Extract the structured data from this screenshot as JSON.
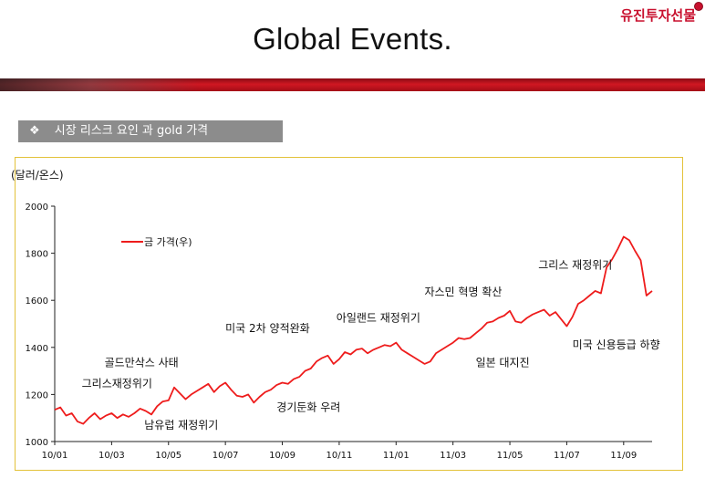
{
  "brand": {
    "name": "유진투자선물"
  },
  "page": {
    "title": "Global Events."
  },
  "section": {
    "label": "시장 리스크 요인 과 gold 가격",
    "bullet": "❖"
  },
  "colors": {
    "line": "#ee1c1c",
    "accent": "#c8102e",
    "frame": "#e3c23a",
    "label_bg": "#8c8c8c"
  },
  "chart_data": {
    "type": "line",
    "title": "",
    "ylabel": "(달러/온스)",
    "xlabel": "",
    "ylim": [
      1000,
      2000
    ],
    "yticks": [
      1000,
      1200,
      1400,
      1600,
      1800,
      2000
    ],
    "xlim": [
      0,
      21
    ],
    "xticks": [
      {
        "label": "10/01",
        "value": 0
      },
      {
        "label": "10/03",
        "value": 2
      },
      {
        "label": "10/05",
        "value": 4
      },
      {
        "label": "10/07",
        "value": 6
      },
      {
        "label": "10/09",
        "value": 8
      },
      {
        "label": "10/11",
        "value": 10
      },
      {
        "label": "11/01",
        "value": 12
      },
      {
        "label": "11/03",
        "value": 14
      },
      {
        "label": "11/05",
        "value": 16
      },
      {
        "label": "11/07",
        "value": 18
      },
      {
        "label": "11/09",
        "value": 20
      }
    ],
    "legend": {
      "label": "금 가격(우)",
      "position": "top-left"
    },
    "series": [
      {
        "name": "금 가격(우)",
        "x": [
          0,
          0.2,
          0.4,
          0.6,
          0.8,
          1.0,
          1.2,
          1.4,
          1.6,
          1.8,
          2.0,
          2.2,
          2.4,
          2.6,
          2.8,
          3.0,
          3.2,
          3.4,
          3.6,
          3.8,
          4.0,
          4.2,
          4.4,
          4.6,
          4.8,
          5.0,
          5.2,
          5.4,
          5.6,
          5.8,
          6.0,
          6.2,
          6.4,
          6.6,
          6.8,
          7.0,
          7.2,
          7.4,
          7.6,
          7.8,
          8.0,
          8.2,
          8.4,
          8.6,
          8.8,
          9.0,
          9.2,
          9.4,
          9.6,
          9.8,
          10.0,
          10.2,
          10.4,
          10.6,
          10.8,
          11.0,
          11.2,
          11.4,
          11.6,
          11.8,
          12.0,
          12.2,
          12.4,
          12.6,
          12.8,
          13.0,
          13.2,
          13.4,
          13.6,
          13.8,
          14.0,
          14.2,
          14.4,
          14.6,
          14.8,
          15.0,
          15.2,
          15.4,
          15.6,
          15.8,
          16.0,
          16.2,
          16.4,
          16.6,
          16.8,
          17.0,
          17.2,
          17.4,
          17.6,
          17.8,
          18.0,
          18.2,
          18.4,
          18.6,
          18.8,
          19.0,
          19.2,
          19.4,
          19.6,
          19.8,
          20.0,
          20.2,
          20.4,
          20.6,
          20.8,
          21.0
        ],
        "values": [
          1135,
          1145,
          1110,
          1120,
          1085,
          1075,
          1100,
          1120,
          1095,
          1110,
          1120,
          1100,
          1115,
          1105,
          1120,
          1140,
          1130,
          1115,
          1150,
          1170,
          1175,
          1230,
          1205,
          1180,
          1200,
          1215,
          1230,
          1245,
          1210,
          1235,
          1250,
          1220,
          1195,
          1190,
          1200,
          1165,
          1190,
          1210,
          1220,
          1240,
          1250,
          1245,
          1265,
          1275,
          1300,
          1310,
          1340,
          1355,
          1365,
          1330,
          1350,
          1380,
          1370,
          1390,
          1395,
          1375,
          1390,
          1400,
          1410,
          1405,
          1420,
          1390,
          1375,
          1360,
          1345,
          1330,
          1340,
          1375,
          1390,
          1405,
          1420,
          1440,
          1435,
          1440,
          1460,
          1480,
          1505,
          1510,
          1525,
          1535,
          1555,
          1510,
          1505,
          1525,
          1540,
          1550,
          1560,
          1535,
          1550,
          1520,
          1490,
          1530,
          1585,
          1600,
          1620,
          1640,
          1630,
          1740,
          1775,
          1820,
          1870,
          1855,
          1810,
          1770,
          1620,
          1640
        ]
      }
    ],
    "annotations": [
      {
        "text": "그리스재정위기",
        "x": 0.95,
        "value": 1230
      },
      {
        "text": "골드만삭스 사태",
        "x": 1.75,
        "value": 1320
      },
      {
        "text": "남유럽 재정위기",
        "x": 3.15,
        "value": 1055
      },
      {
        "text": "미국 2차 양적완화",
        "x": 6.0,
        "value": 1465
      },
      {
        "text": "경기둔화 우려",
        "x": 7.8,
        "value": 1130
      },
      {
        "text": "아일랜드 재정위기",
        "x": 9.9,
        "value": 1510
      },
      {
        "text": "자스민 혁명 확산",
        "x": 13.0,
        "value": 1620
      },
      {
        "text": "일본 대지진",
        "x": 14.8,
        "value": 1320
      },
      {
        "text": "그리스 재정위기",
        "x": 17.0,
        "value": 1735
      },
      {
        "text": "미국 신용등급 하향",
        "x": 18.2,
        "value": 1395
      }
    ]
  }
}
